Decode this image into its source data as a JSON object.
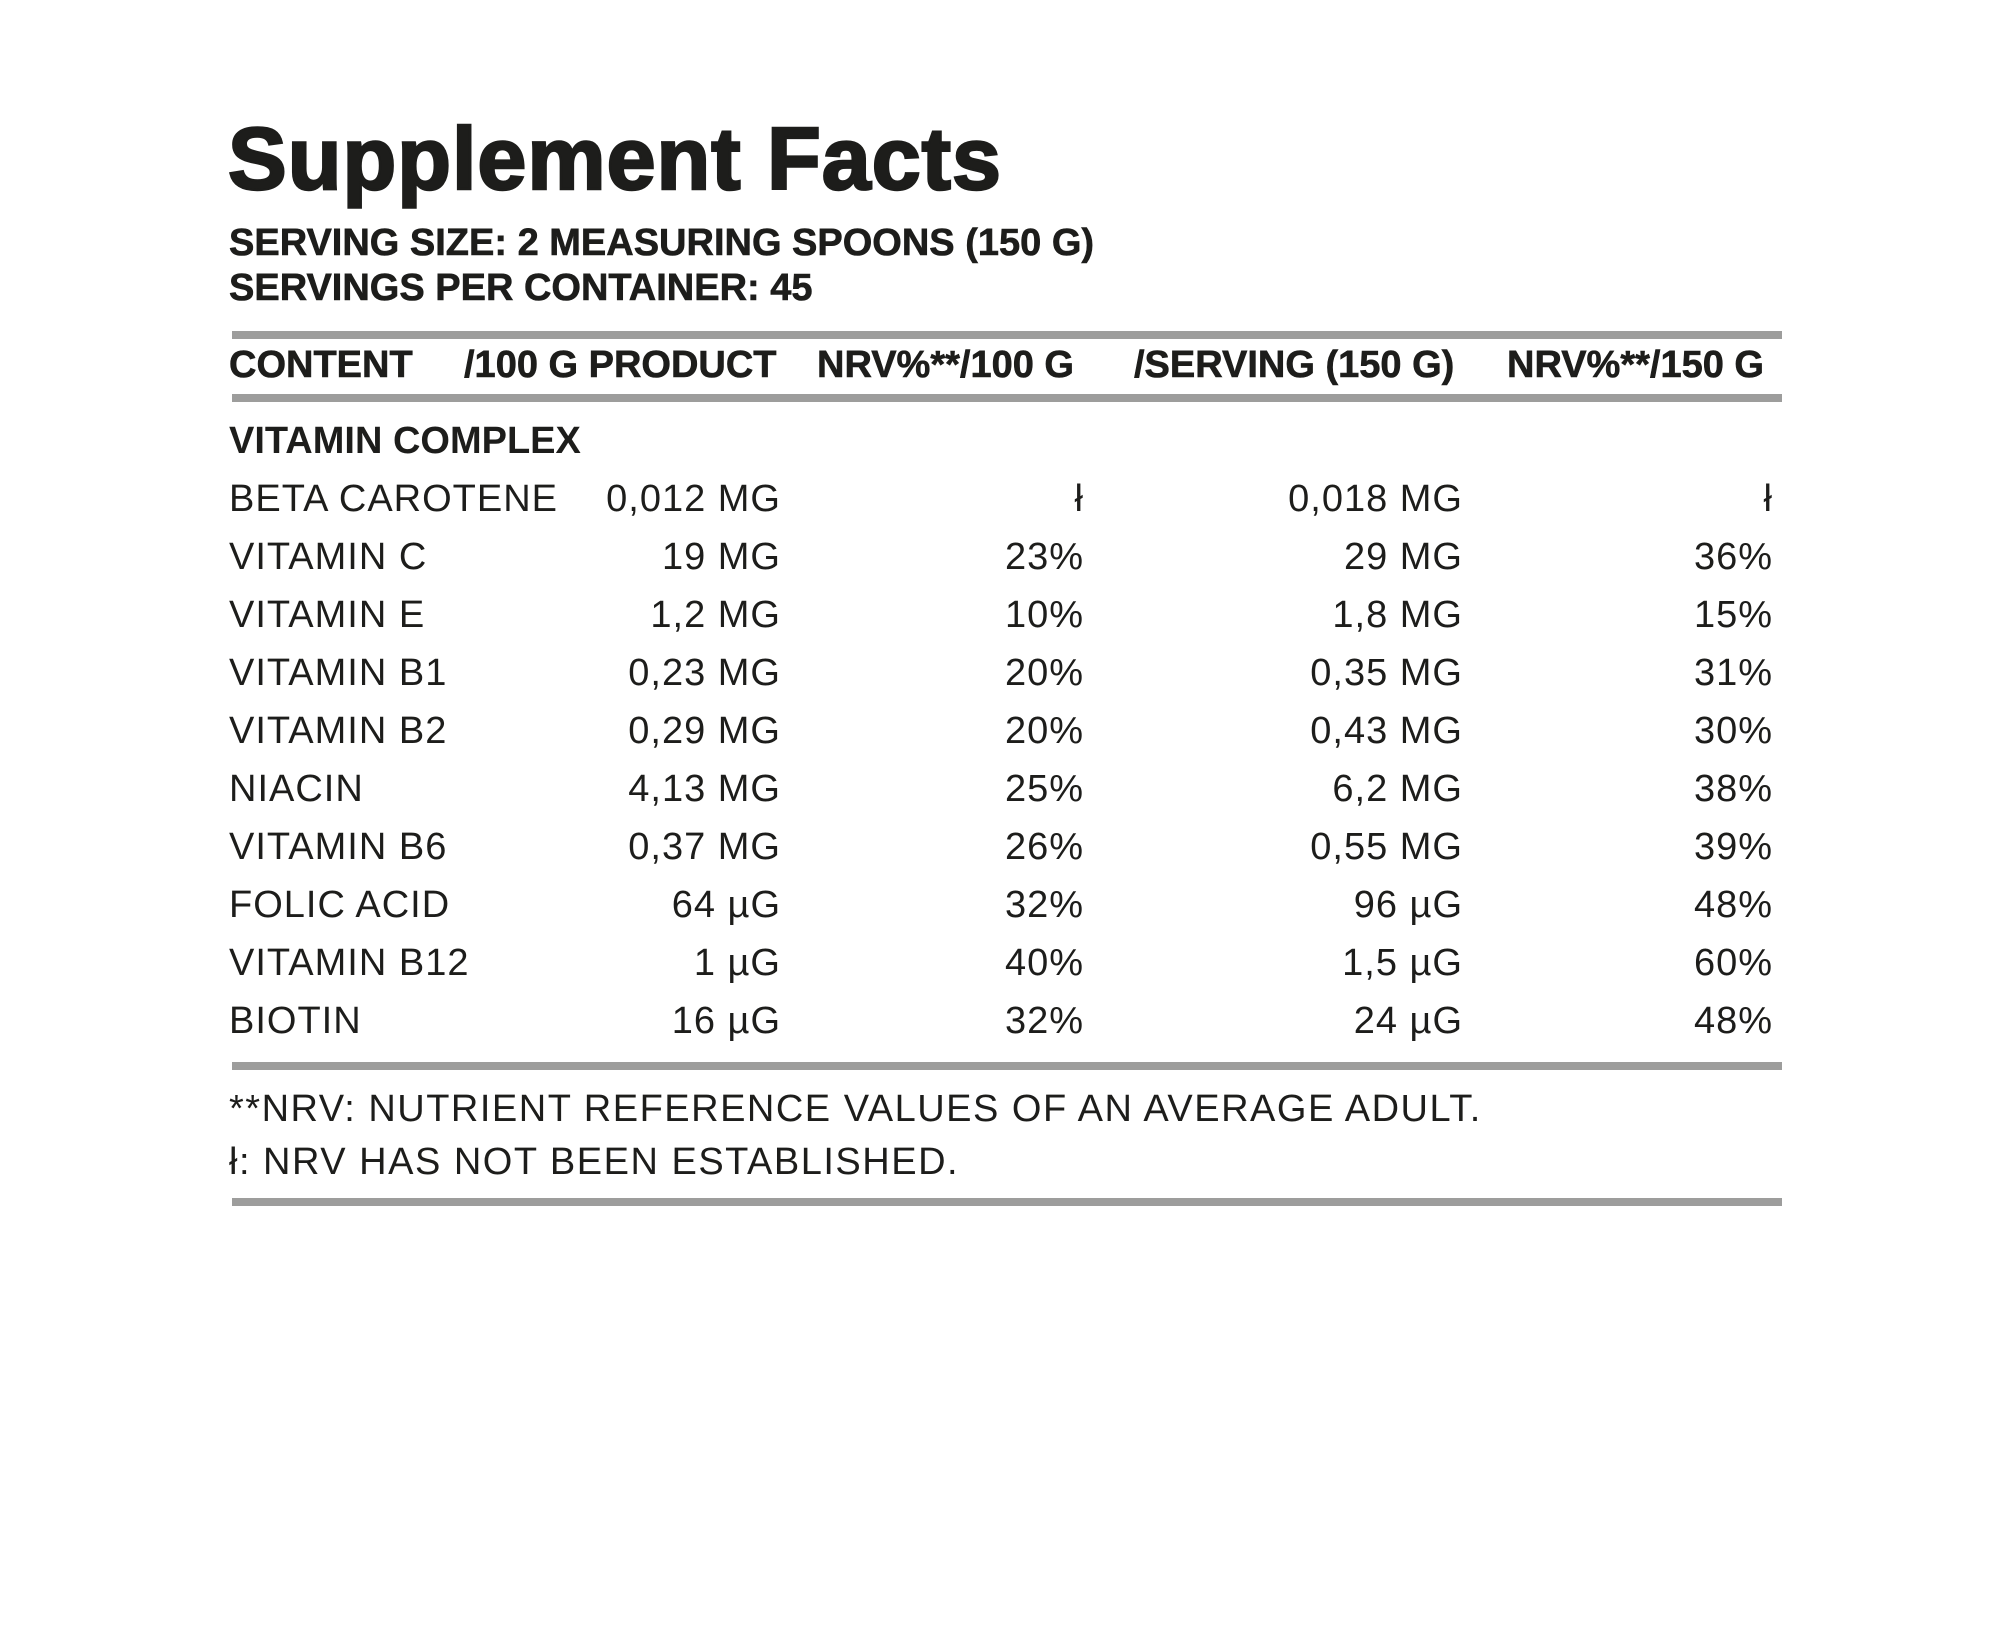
{
  "title": "Supplement Facts",
  "serving_size": "SERVING SIZE: 2 MEASURING SPOONS (150 G)",
  "servings_per_container": "SERVINGS PER CONTAINER: 45",
  "columns": [
    "CONTENT",
    "/100 G PRODUCT",
    "NRV%**/100 G",
    "/SERVING (150 G)",
    "NRV%**/150 G"
  ],
  "section": "VITAMIN COMPLEX",
  "rows": [
    [
      "BETA CAROTENE",
      "0,012 MG",
      "ł",
      "0,018 MG",
      "ł"
    ],
    [
      "VITAMIN C",
      "19 MG",
      "23%",
      "29 MG",
      "36%"
    ],
    [
      "VITAMIN E",
      "1,2 MG",
      "10%",
      "1,8 MG",
      "15%"
    ],
    [
      "VITAMIN B1",
      "0,23 MG",
      "20%",
      "0,35 MG",
      "31%"
    ],
    [
      "VITAMIN B2",
      "0,29 MG",
      "20%",
      "0,43 MG",
      "30%"
    ],
    [
      "NIACIN",
      "4,13 MG",
      "25%",
      "6,2 MG",
      "38%"
    ],
    [
      "VITAMIN B6",
      "0,37 MG",
      "26%",
      "0,55 MG",
      "39%"
    ],
    [
      "FOLIC ACID",
      "64 µG",
      "32%",
      "96 µG",
      "48%"
    ],
    [
      "VITAMIN B12",
      "1 µG",
      "40%",
      "1,5 µG",
      "60%"
    ],
    [
      "BIOTIN",
      "16 µG",
      "32%",
      "24 µG",
      "48%"
    ]
  ],
  "footnotes": [
    "**NRV: NUTRIENT REFERENCE VALUES OF AN AVERAGE ADULT.",
    "ł: NRV HAS NOT BEEN ESTABLISHED."
  ],
  "colors": {
    "text": "#1d1d1b",
    "rule": "#9d9d9c"
  }
}
